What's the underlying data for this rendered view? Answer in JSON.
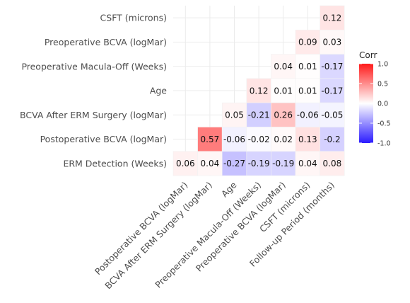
{
  "chart_data": {
    "type": "heatmap",
    "title": "",
    "xlabel": "",
    "ylabel": "",
    "rows": [
      "CSFT (microns)",
      "Preoperative BCVA (logMar)",
      "Preoperative Macula-Off (Weeks)",
      "Age",
      "BCVA After ERM Surgery (logMar)",
      "Postoperative BCVA (logMar)",
      "ERM Detection (Weeks)"
    ],
    "columns": [
      "Postoperative BCVA (logMar)",
      "BCVA After ERM Surgery (logMar)",
      "Age",
      "Preoperative Macula-Off (Weeks)",
      "Preoperative BCVA (logMar)",
      "CSFT (microns)",
      "Follow-up Period (months)"
    ],
    "values": [
      [
        null,
        null,
        null,
        null,
        null,
        null,
        0.12
      ],
      [
        null,
        null,
        null,
        null,
        null,
        0.09,
        0.03
      ],
      [
        null,
        null,
        null,
        null,
        0.04,
        0.01,
        -0.17
      ],
      [
        null,
        null,
        null,
        0.12,
        0.01,
        0.01,
        -0.17
      ],
      [
        null,
        null,
        0.05,
        -0.21,
        0.26,
        -0.06,
        -0.05
      ],
      [
        null,
        0.57,
        -0.06,
        -0.02,
        0.02,
        0.13,
        -0.2
      ],
      [
        0.06,
        0.04,
        -0.27,
        -0.19,
        -0.19,
        0.04,
        0.08
      ]
    ],
    "legend": {
      "title": "Corr",
      "ticks": [
        "1.0",
        "0.5",
        "0.0",
        "-0.5",
        "-1.0"
      ],
      "tick_values": [
        1.0,
        0.5,
        0.0,
        -0.5,
        -1.0
      ],
      "range": [
        -1.0,
        1.0
      ],
      "placement": "right"
    },
    "colors": {
      "low": "#2b1bff",
      "mid": "#ffffff",
      "high": "#ff1a1a"
    },
    "grid": true
  }
}
